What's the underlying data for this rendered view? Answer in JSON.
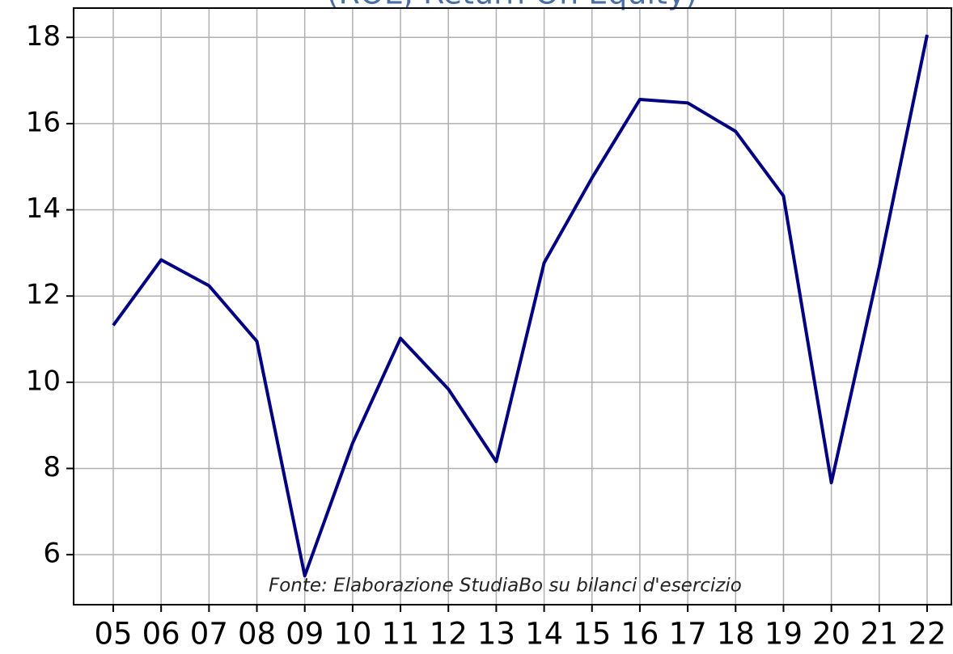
{
  "chart_data": {
    "type": "line",
    "title": "(ROE, Return On Equity)",
    "annotation": "Fonte: Elaborazione StudiaBo su bilanci d'esercizio",
    "categories": [
      "05",
      "06",
      "07",
      "08",
      "09",
      "10",
      "11",
      "12",
      "13",
      "14",
      "15",
      "16",
      "17",
      "18",
      "19",
      "20",
      "21",
      "22"
    ],
    "series": [
      {
        "name": "ROE",
        "color": "#000080",
        "values": [
          11.32,
          12.84,
          12.24,
          10.95,
          5.51,
          8.59,
          11.02,
          9.84,
          8.16,
          12.77,
          14.74,
          16.56,
          16.48,
          15.82,
          14.32,
          7.67,
          12.67,
          18.06
        ]
      }
    ],
    "ylim": [
      4.84,
      18.68
    ],
    "yticks": [
      6,
      8,
      10,
      12,
      14,
      16,
      18
    ],
    "grid": true
  }
}
